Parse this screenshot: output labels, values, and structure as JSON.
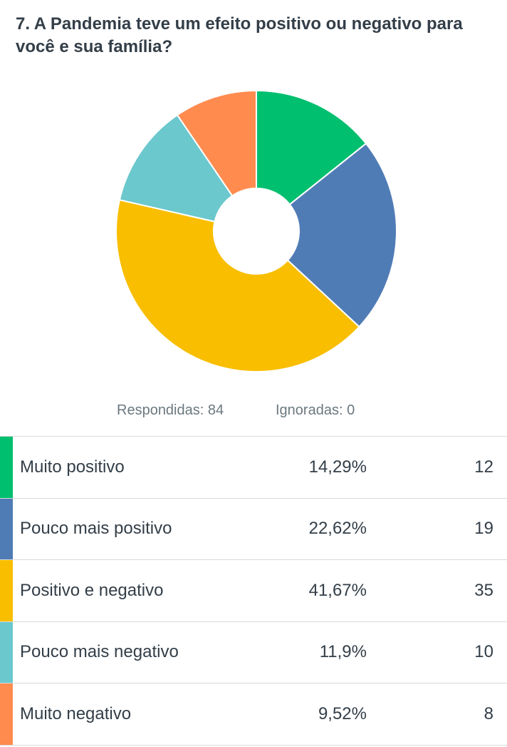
{
  "title": "7. A Pandemia teve um efeito positivo ou negativo para você e sua família?",
  "answered": "Respondidas: 84",
  "skipped": "Ignoradas: 0",
  "chart_data": {
    "type": "pie",
    "style": "donut",
    "title": "7. A Pandemia teve um efeito positivo ou negativo para você e sua família?",
    "categories": [
      "Muito positivo",
      "Pouco mais positivo",
      "Positivo e negativo",
      "Pouco mais negativo",
      "Muito negativo"
    ],
    "values": [
      12,
      19,
      35,
      10,
      8
    ],
    "percent_labels": [
      "14,29%",
      "22,62%",
      "41,67%",
      "11,9%",
      "9,52%"
    ],
    "count_labels": [
      "12",
      "19",
      "35",
      "10",
      "8"
    ],
    "colors": [
      "#00bf6f",
      "#507cb6",
      "#f9be00",
      "#6bc8cd",
      "#ff8b4f"
    ]
  }
}
